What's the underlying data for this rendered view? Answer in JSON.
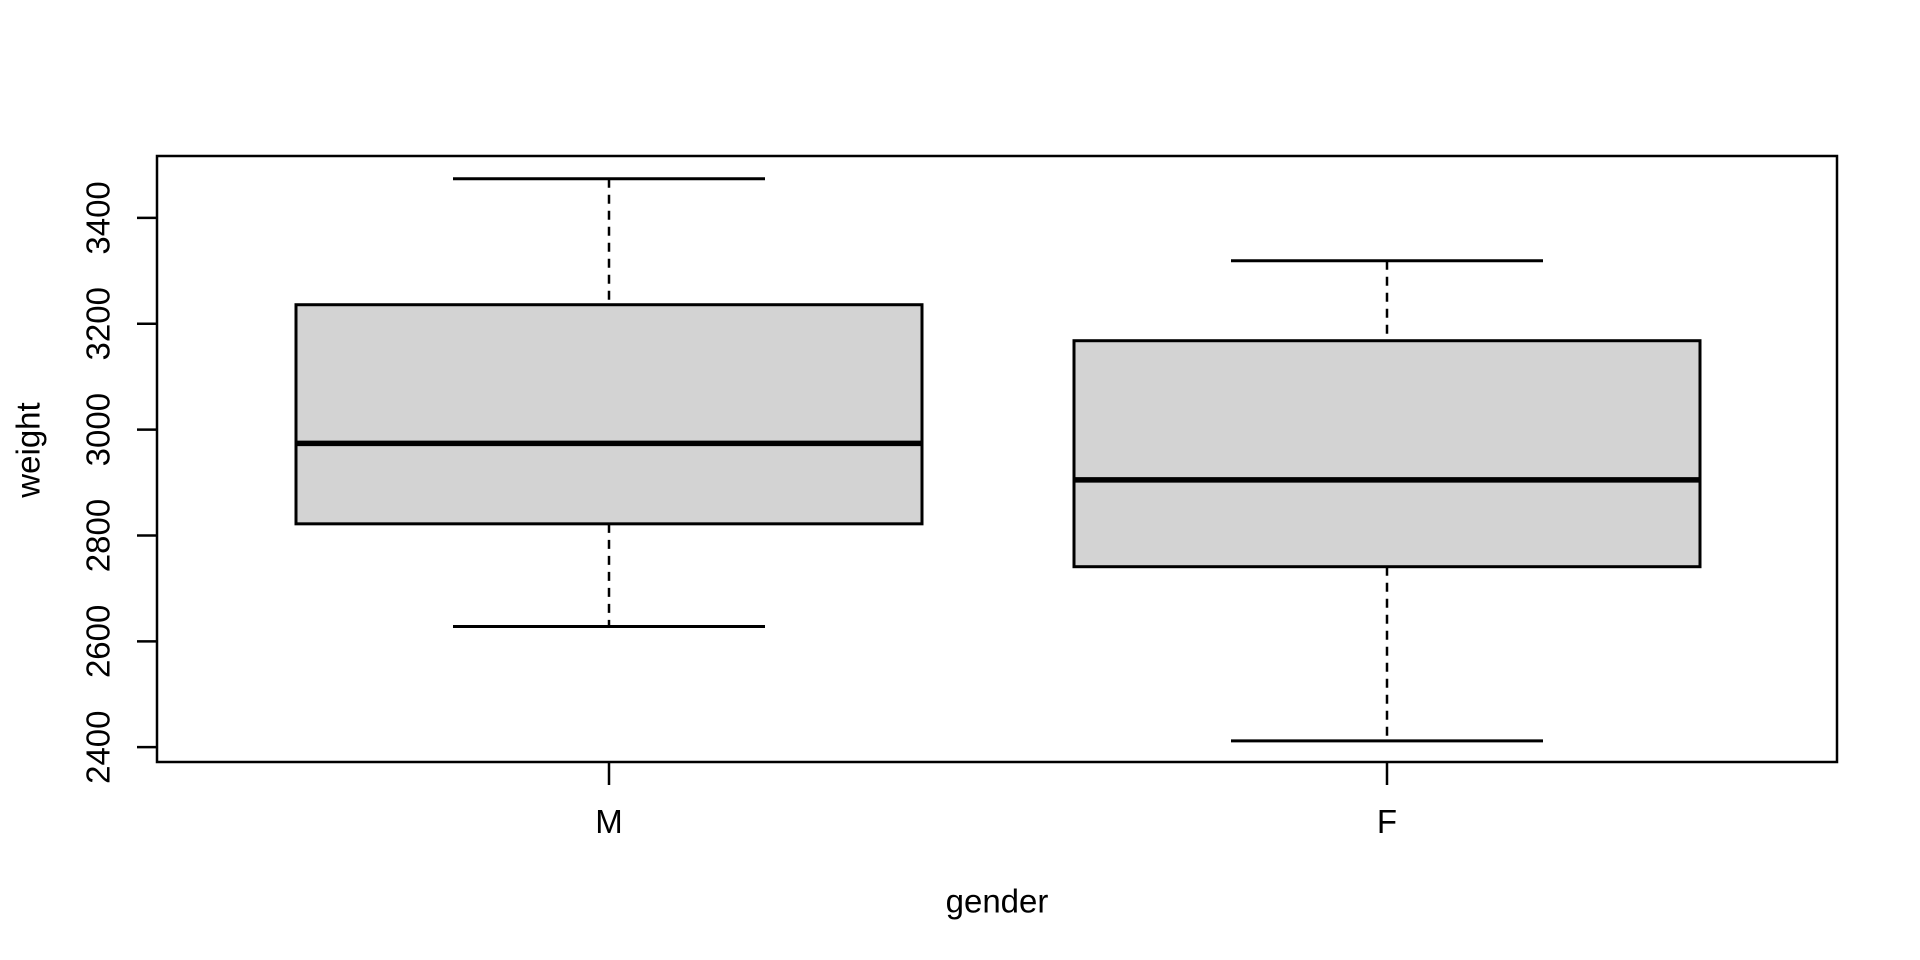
{
  "chart_data": {
    "type": "boxplot",
    "title": "",
    "xlabel": "gender",
    "ylabel": "weight",
    "categories": [
      "M",
      "F"
    ],
    "y_ticks": [
      2400,
      2600,
      2800,
      3000,
      3200,
      3400
    ],
    "ylim": [
      2372,
      3517
    ],
    "grid": "off",
    "legend": "none",
    "series": [
      {
        "category": "M",
        "min": 2628,
        "q1": 2822,
        "median": 2974,
        "q3": 3236,
        "max": 3474,
        "outliers": []
      },
      {
        "category": "F",
        "min": 2412,
        "q1": 2741,
        "median": 2905,
        "q3": 3168,
        "max": 3319,
        "outliers": []
      }
    ],
    "colors": {
      "box_fill": "#d3d3d3",
      "stroke": "#000000",
      "background": "#ffffff"
    }
  }
}
